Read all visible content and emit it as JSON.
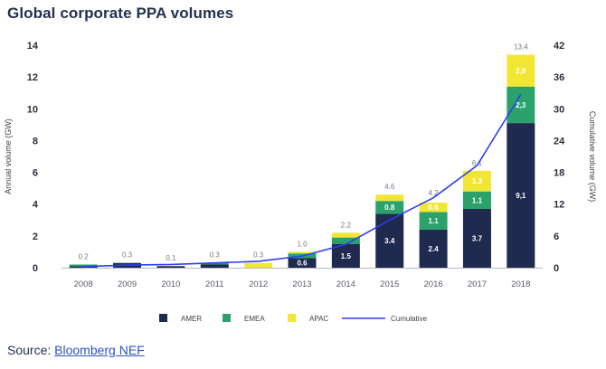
{
  "title": "Global corporate PPA volumes",
  "source": {
    "prefix": "Source: ",
    "link_text": "Bloomberg NEF"
  },
  "chart_data": {
    "type": "bar",
    "stacked": true,
    "categories": [
      "2008",
      "2009",
      "2010",
      "2011",
      "2012",
      "2013",
      "2014",
      "2015",
      "2016",
      "2017",
      "2018"
    ],
    "series": [
      {
        "name": "AMER",
        "color": "#1f2a4f",
        "values": [
          0.1,
          0.3,
          0.1,
          0.2,
          0.0,
          0.6,
          1.5,
          3.4,
          2.4,
          3.7,
          9.1
        ],
        "labels": [
          "",
          "",
          "",
          "",
          "",
          "0.6",
          "1.5",
          "3.4",
          "2.4",
          "3.7",
          "9,1"
        ]
      },
      {
        "name": "EMEA",
        "color": "#2aa26a",
        "values": [
          0.1,
          0.0,
          0.0,
          0.1,
          0.0,
          0.3,
          0.4,
          0.8,
          1.1,
          1.1,
          2.3
        ],
        "labels": [
          "",
          "",
          "",
          "",
          "",
          "",
          "",
          "0.8",
          "1.1",
          "1.1",
          "2,3"
        ]
      },
      {
        "name": "APAC",
        "color": "#f2e635",
        "values": [
          0.0,
          0.0,
          0.0,
          0.0,
          0.3,
          0.1,
          0.3,
          0.4,
          0.6,
          1.3,
          2.0
        ],
        "labels": [
          "",
          "",
          "",
          "",
          "",
          "",
          "",
          "",
          "0.6",
          "1.3",
          "2,0"
        ]
      }
    ],
    "totals": [
      0.2,
      0.3,
      0.1,
      0.3,
      0.3,
      1.0,
      2.2,
      4.6,
      4.2,
      6.1,
      13.4
    ],
    "total_labels": [
      "0.2",
      "0.3",
      "0.1",
      "0.3",
      "0.3",
      "1.0",
      "2.2",
      "4.6",
      "4.2",
      "6.1",
      "13,4"
    ],
    "line_series": {
      "name": "Cumulative",
      "color": "#2b3ff0",
      "axis": "right",
      "values": [
        0.2,
        0.5,
        0.6,
        0.9,
        1.2,
        2.2,
        4.4,
        9.0,
        13.2,
        19.3,
        32.7
      ]
    },
    "ylabel": "Annual volume (GW)",
    "ylabel_right": "Cumulative volume (GW)",
    "ylim": [
      0,
      14
    ],
    "ylim_right": [
      0,
      42
    ],
    "yticks": [
      0,
      2,
      4,
      6,
      8,
      10,
      12,
      14
    ],
    "yticks_right": [
      0,
      6,
      12,
      18,
      24,
      30,
      36,
      42
    ],
    "grid": false,
    "legend": "bottom"
  }
}
